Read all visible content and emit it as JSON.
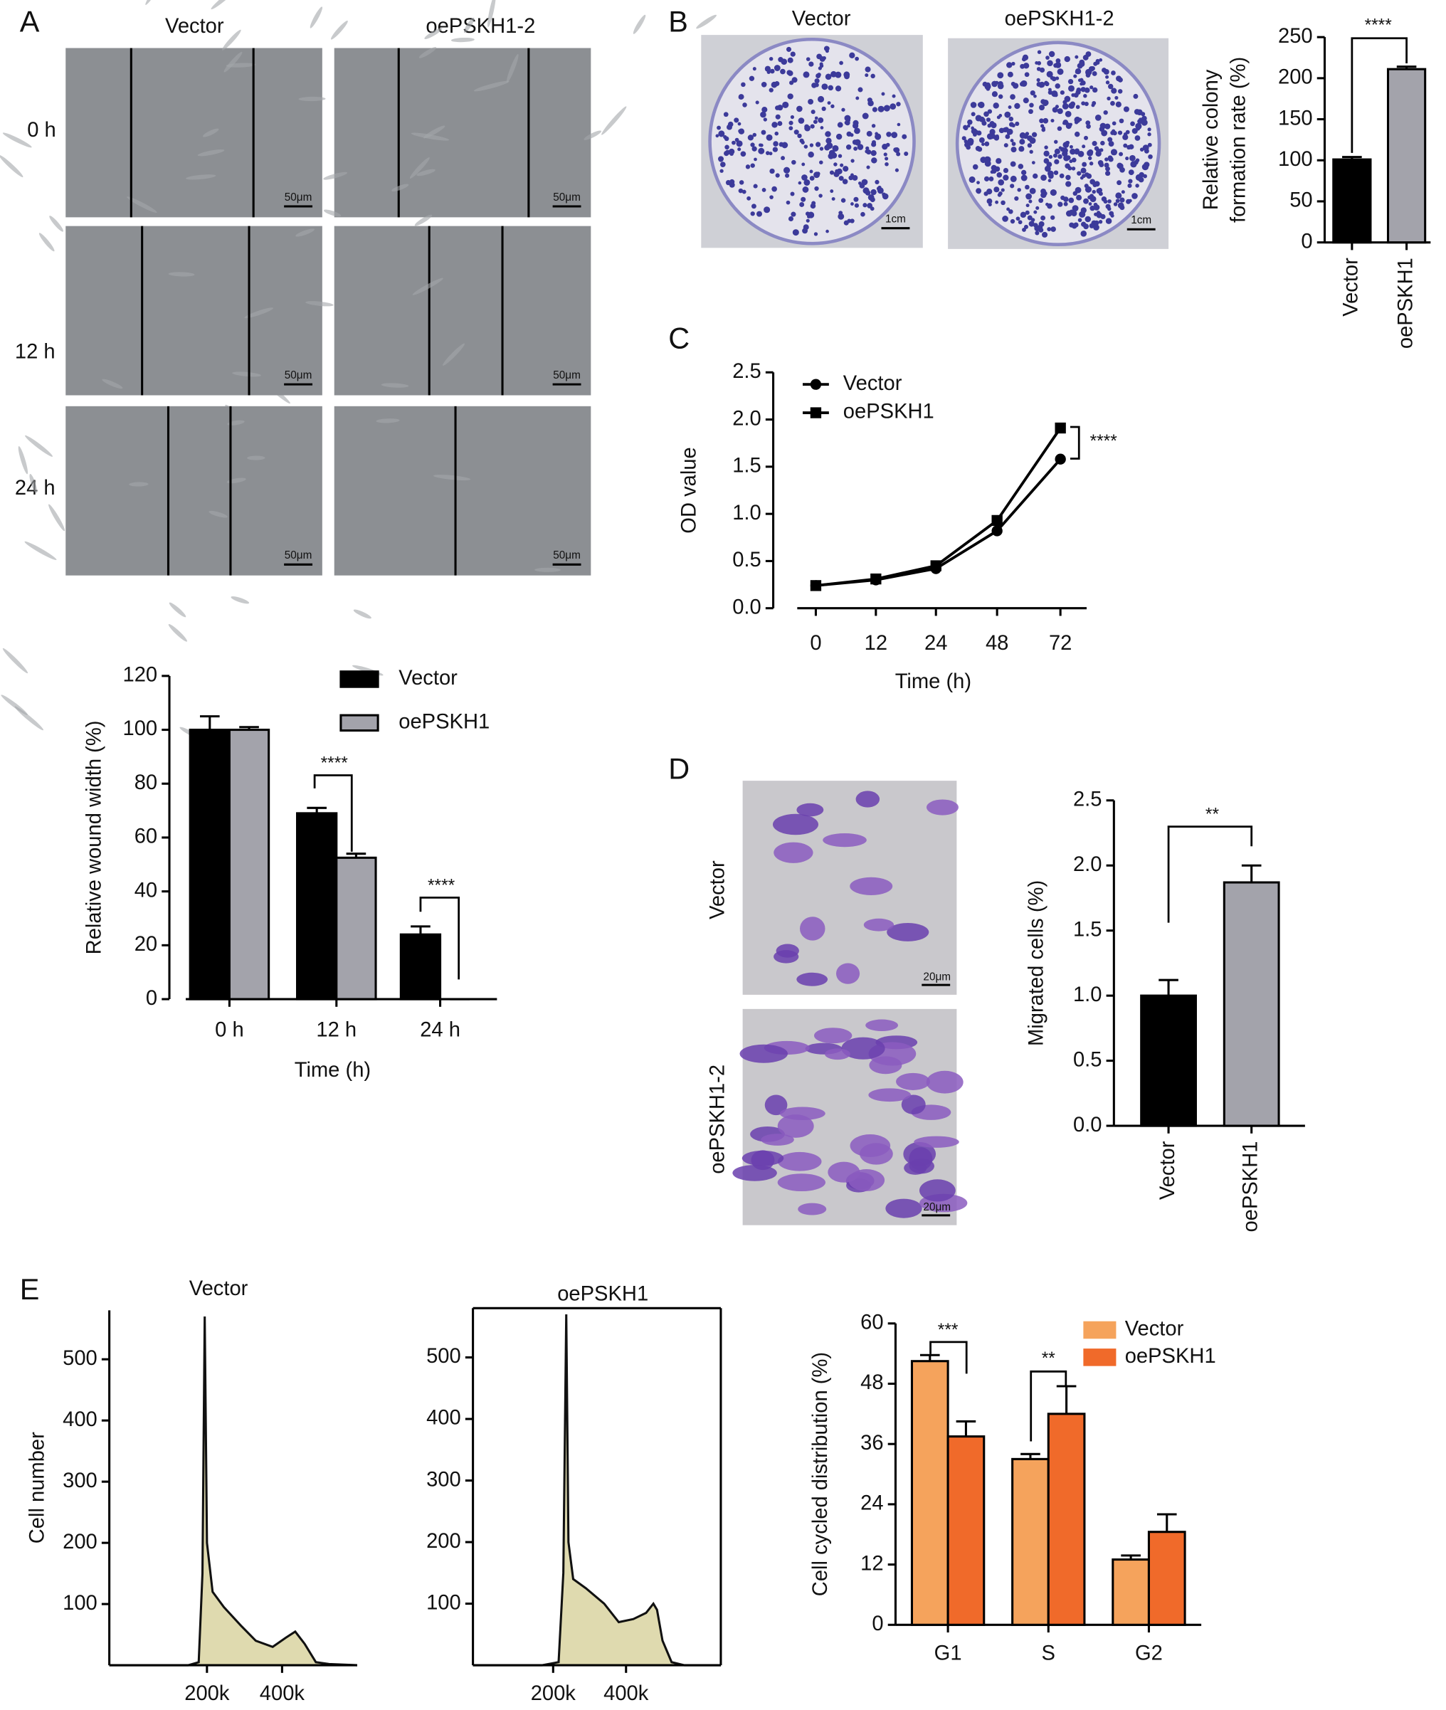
{
  "figure": {
    "panel_labels": [
      "A",
      "B",
      "C",
      "D",
      "E"
    ],
    "wound_healing": {
      "columns": [
        "Vector",
        "oePSKH1-2"
      ],
      "rows": [
        "0 h",
        "12 h",
        "24 h"
      ],
      "scale_bar": "50μm"
    },
    "colony_formation": {
      "columns": [
        "Vector",
        "oePSKH1-2"
      ],
      "scale_bar": "1cm"
    },
    "transwell": {
      "rows": [
        "Vector",
        "oePSKH1-2"
      ],
      "scale_bar": "20μm"
    }
  },
  "chart_data": [
    {
      "type": "bar",
      "categories": [
        "0 h",
        "12 h",
        "24 h"
      ],
      "series": [
        {
          "name": "Vector",
          "color": "#000000",
          "values": [
            100,
            69,
            24
          ],
          "errors": [
            5,
            2,
            3
          ]
        },
        {
          "name": "oePSKH1",
          "color": "#a3a3ab",
          "values": [
            100,
            52.5,
            0
          ],
          "errors": [
            1,
            1.5,
            0
          ]
        }
      ],
      "ylim": [
        0,
        120
      ],
      "yticks": [
        0,
        20,
        40,
        60,
        80,
        100,
        120
      ],
      "ylabel": "Relative wound width (%)",
      "xlabel": "Time (h)",
      "annotations": [
        "****",
        "****"
      ]
    },
    {
      "type": "bar",
      "categories": [
        "Vector",
        "oePSKH1"
      ],
      "values": [
        101,
        211
      ],
      "errors": [
        3,
        3
      ],
      "colors": [
        "#000000",
        "#a3a3ab"
      ],
      "ylim": [
        0,
        250
      ],
      "yticks": [
        0,
        50,
        100,
        150,
        200,
        250
      ],
      "ylabel": [
        "Relative colony",
        "formation rate (%)"
      ],
      "annotations": [
        "****"
      ]
    },
    {
      "type": "line",
      "categories": [
        "0",
        "12",
        "24",
        "48",
        "72"
      ],
      "series": [
        {
          "name": "Vector",
          "color": "#000000",
          "marker": "circle",
          "values": [
            0.24,
            0.3,
            0.42,
            0.82,
            1.58
          ]
        },
        {
          "name": "oePSKH1",
          "color": "#000000",
          "marker": "square",
          "values": [
            0.24,
            0.31,
            0.45,
            0.93,
            1.91
          ]
        }
      ],
      "ylim": [
        0,
        2.5
      ],
      "yticks": [
        {
          "value": 0,
          "label": "0.0"
        },
        0.5,
        {
          "value": 1,
          "label": "1.0"
        },
        1.5,
        {
          "value": 2,
          "label": "2.0"
        },
        2.5
      ],
      "ylabel": "OD value",
      "xlabel": "Time (h)",
      "annotations": [
        "****"
      ]
    },
    {
      "type": "bar",
      "categories": [
        "Vector",
        "oePSKH1"
      ],
      "values": [
        1,
        1.87
      ],
      "errors": [
        0.12,
        0.13
      ],
      "colors": [
        "#000000",
        "#a3a3ab"
      ],
      "ylim": [
        0,
        2.5
      ],
      "yticks": [
        {
          "value": 0,
          "label": "0.0"
        },
        0.5,
        {
          "value": 1,
          "label": "1.0"
        },
        1.5,
        {
          "value": 2,
          "label": "2.0"
        },
        2.5
      ],
      "ylabel": "Migrated cells (%)",
      "annotations": [
        "**"
      ]
    },
    {
      "type": "bar",
      "categories": [
        "G1",
        "S",
        "G2"
      ],
      "series": [
        {
          "name": "Vector",
          "color": "#f5a35c",
          "values": [
            52.5,
            33,
            13
          ],
          "errors": [
            1.2,
            1,
            0.8
          ]
        },
        {
          "name": "oePSKH1",
          "color": "#f06a2a",
          "values": [
            37.5,
            42,
            18.5
          ],
          "errors": [
            3,
            5.5,
            3.5
          ]
        }
      ],
      "ylim": [
        0,
        60
      ],
      "yticks": [
        0,
        12,
        24,
        36,
        48,
        60
      ],
      "ylabel": "Cell cycled distribution (%)",
      "annotations": [
        "***",
        "**"
      ]
    },
    {
      "type": "area",
      "title": "Vector",
      "ylabel": "Cell number",
      "color": "#111111",
      "fill": "#c9c27a",
      "x": [
        -60000,
        150000,
        178000,
        188000,
        194000,
        200000,
        215000,
        245000,
        290000,
        330000,
        375000,
        410000,
        435000,
        460000,
        490000,
        525000,
        600000
      ],
      "values": [
        0,
        0,
        5,
        150,
        570,
        200,
        120,
        95,
        65,
        40,
        30,
        45,
        55,
        35,
        5,
        2,
        0
      ],
      "xlim": [
        -60000,
        600000
      ],
      "xticks": [
        {
          "value": 200000,
          "label": "200k"
        },
        {
          "value": 400000,
          "label": "400k"
        }
      ],
      "ylim": [
        0,
        580
      ],
      "yticks": [
        100,
        200,
        300,
        400,
        500
      ]
    },
    {
      "type": "area",
      "title": "oePSKH1",
      "color": "#111111",
      "fill": "#c9c27a",
      "x": [
        -20000,
        170000,
        215000,
        228000,
        236000,
        242000,
        255000,
        290000,
        340000,
        380000,
        420000,
        455000,
        475000,
        485000,
        500000,
        525000,
        560000,
        660000
      ],
      "values": [
        0,
        0,
        5,
        150,
        570,
        200,
        140,
        125,
        100,
        70,
        75,
        85,
        100,
        90,
        40,
        5,
        0,
        0
      ],
      "xlim": [
        -20000,
        660000
      ],
      "xticks": [
        {
          "value": 200000,
          "label": "200k"
        },
        {
          "value": 400000,
          "label": "400k"
        }
      ],
      "ylim": [
        0,
        580
      ],
      "yticks": [
        100,
        200,
        300,
        400,
        500
      ]
    }
  ]
}
